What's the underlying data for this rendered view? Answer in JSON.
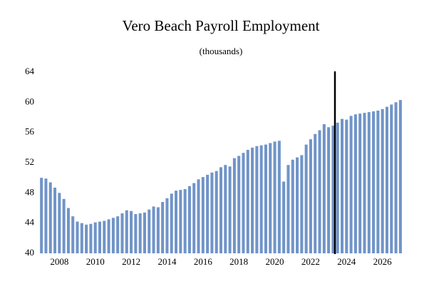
{
  "chart_data": {
    "type": "bar",
    "title": "Vero Beach Payroll Employment",
    "subtitle": "(thousands)",
    "categories": [
      null,
      null,
      null,
      null,
      "2008",
      null,
      null,
      null,
      null,
      null,
      null,
      null,
      "2010",
      null,
      null,
      null,
      null,
      null,
      null,
      null,
      "2012",
      null,
      null,
      null,
      null,
      null,
      null,
      null,
      "2014",
      null,
      null,
      null,
      null,
      null,
      null,
      null,
      "2016",
      null,
      null,
      null,
      null,
      null,
      null,
      null,
      "2018",
      null,
      null,
      null,
      null,
      null,
      null,
      null,
      "2020",
      null,
      null,
      null,
      null,
      null,
      null,
      null,
      "2022",
      null,
      null,
      null,
      null,
      null,
      null,
      null,
      "2024",
      null,
      null,
      null,
      null,
      null,
      null,
      null,
      "2026",
      null,
      null,
      null,
      null
    ],
    "values": [
      50.0,
      49.9,
      49.4,
      48.7,
      48.0,
      47.2,
      46.0,
      44.9,
      44.2,
      44.0,
      43.8,
      43.9,
      44.1,
      44.2,
      44.3,
      44.5,
      44.7,
      44.9,
      45.3,
      45.7,
      45.6,
      45.2,
      45.3,
      45.4,
      45.8,
      46.2,
      46.1,
      46.8,
      47.3,
      47.9,
      48.3,
      48.4,
      48.5,
      48.9,
      49.3,
      49.8,
      50.1,
      50.4,
      50.7,
      50.9,
      51.4,
      51.7,
      51.5,
      52.6,
      52.9,
      53.3,
      53.7,
      54.0,
      54.2,
      54.3,
      54.4,
      54.6,
      54.8,
      54.9,
      49.5,
      51.7,
      52.4,
      52.7,
      53.0,
      54.4,
      55.1,
      55.8,
      56.3,
      57.1,
      56.7,
      56.9,
      57.3,
      57.8,
      57.7,
      58.2,
      58.4,
      58.5,
      58.6,
      58.7,
      58.8,
      58.9,
      59.1,
      59.4,
      59.7,
      60.0,
      60.3
    ],
    "color": "#7094c8",
    "ylim": [
      40,
      64
    ],
    "yticks": [
      40,
      44,
      48,
      52,
      56,
      60,
      64
    ],
    "grid": false
  }
}
